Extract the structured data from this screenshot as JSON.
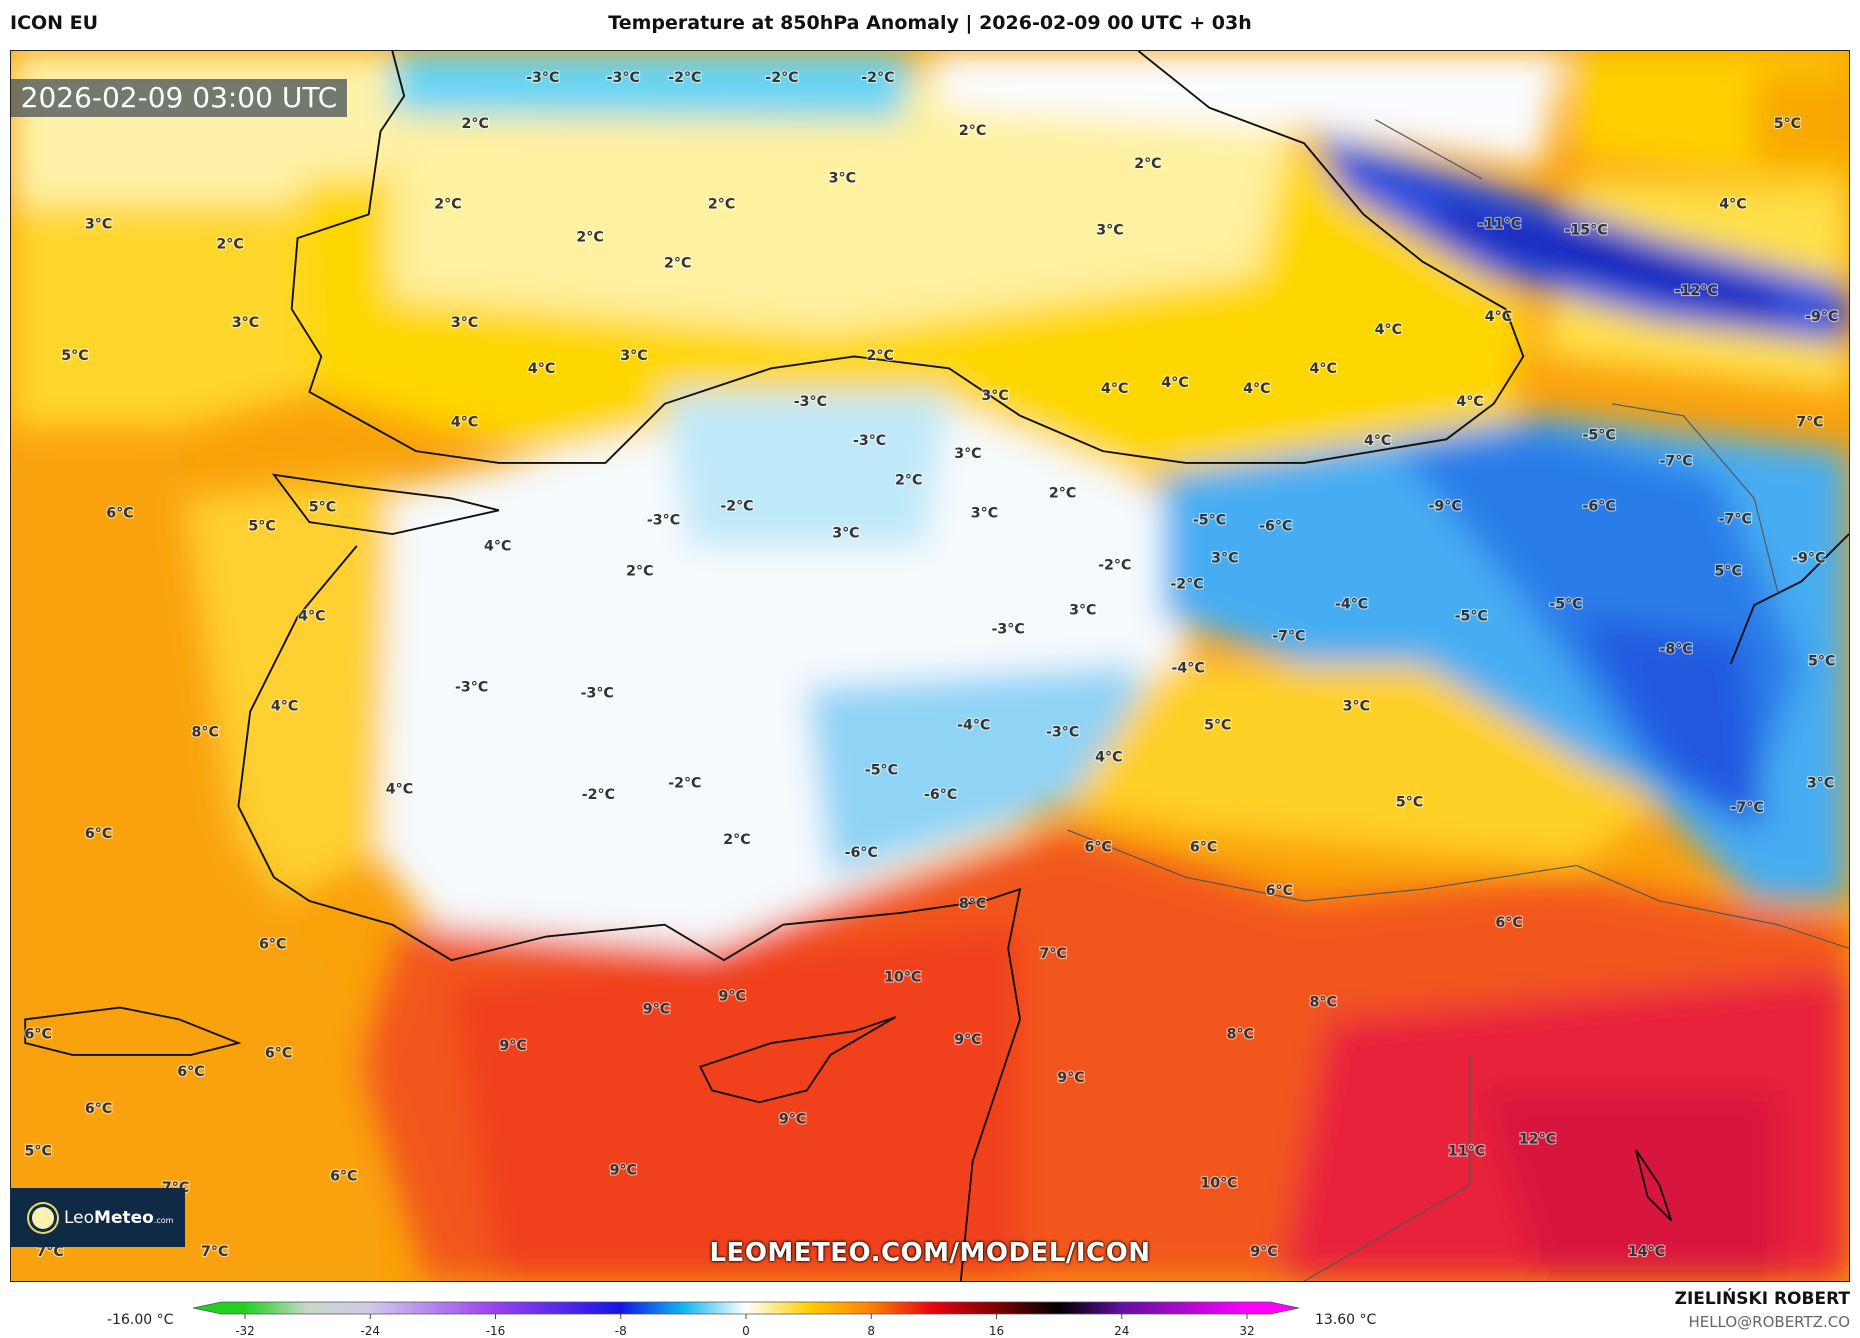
{
  "header": {
    "model": "ICON EU",
    "title": "Temperature at 850hPa Anomaly | 2026-02-09 00 UTC + 03h"
  },
  "map": {
    "valid_time": "2026-02-09 03:00 UTC",
    "watermark": "LEOMETEO.COM/MODEL/ICON",
    "logo": {
      "brand_light": "Leo",
      "brand_bold": "Meteo",
      "suffix": ".com"
    },
    "labels": [
      "-3°C",
      "-3°C",
      "-2°C",
      "-2°C",
      "-2°C",
      "2°C",
      "2°C",
      "2°C",
      "3°C",
      "2°C",
      "2°C",
      "3°C",
      "2°C",
      "2°C",
      "2°C",
      "3°C",
      "5°C",
      "4°C",
      "-11°C",
      "-15°C",
      "-12°C",
      "-9°C",
      "4°C",
      "3°C",
      "3°C",
      "3°C",
      "4°C",
      "2°C",
      "5°C",
      "4°C",
      "4°C",
      "3°C",
      "4°C",
      "4°C",
      "4°C",
      "4°C",
      "4°C",
      "-3°C",
      "-3°C",
      "3°C",
      "-5°C",
      "7°C",
      "4°C",
      "-7°C",
      "2°C",
      "2°C",
      "-9°C",
      "-6°C",
      "6°C",
      "5°C",
      "5°C",
      "-3°C",
      "-2°C",
      "3°C",
      "-5°C",
      "-6°C",
      "-7°C",
      "3°C",
      "4°C",
      "3°C",
      "-2°C",
      "-9°C",
      "5°C",
      "2°C",
      "-2°C",
      "-4°C",
      "-5°C",
      "-5°C",
      "4°C",
      "3°C",
      "-3°C",
      "-7°C",
      "-8°C",
      "5°C",
      "-4°C",
      "-3°C",
      "-3°C",
      "3°C",
      "4°C",
      "5°C",
      "-4°C",
      "-3°C",
      "8°C",
      "4°C",
      "-5°C",
      "-2°C",
      "3°C",
      "4°C",
      "-2°C",
      "-6°C",
      "5°C",
      "-7°C",
      "6°C",
      "2°C",
      "6°C",
      "6°C",
      "-6°C",
      "6°C",
      "8°C",
      "6°C",
      "6°C",
      "7°C",
      "10°C",
      "9°C",
      "8°C",
      "9°C",
      "8°C",
      "9°C",
      "6°C",
      "9°C",
      "6°C",
      "6°C",
      "9°C",
      "9°C",
      "6°C",
      "12°C",
      "11°C",
      "5°C",
      "9°C",
      "6°C",
      "10°C",
      "7°C",
      "7°C",
      "7°C",
      "9°C",
      "14°C"
    ]
  },
  "colorbar": {
    "min_label": "-16.00 °C",
    "max_label": "13.60 °C",
    "ticks": [
      "-32",
      "-24",
      "-16",
      "-8",
      "0",
      "8",
      "16",
      "24",
      "32"
    ],
    "range": [
      -32,
      32
    ],
    "colors": {
      "-32": "#22d022",
      "-28": "#c8d8c8",
      "-24": "#d0c8e8",
      "-16": "#9a40f0",
      "-8": "#1414e8",
      "-4": "#10b8f0",
      "0": "#ffffff",
      "4": "#ffd000",
      "8": "#ff8000",
      "12": "#e80010",
      "16": "#800000",
      "20": "#000000",
      "24": "#6010a0",
      "32": "#ff00ff"
    }
  },
  "credits": {
    "author": "ZIELIŃSKI ROBERT",
    "email": "HELLO@ROBERTZ.CO"
  }
}
